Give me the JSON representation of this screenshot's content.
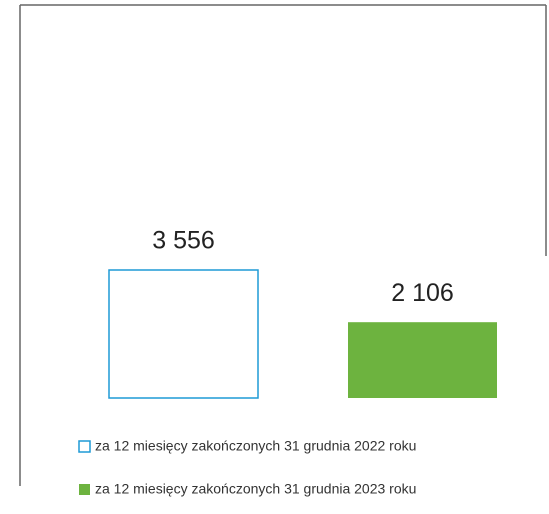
{
  "chart_data": {
    "type": "bar",
    "series": [
      {
        "name": "za 12 miesięcy zakończonych 31 grudnia 2022 roku",
        "color": "#1e9ad6",
        "filled": false,
        "values": [
          3556
        ],
        "value_labels": [
          "3 556"
        ]
      },
      {
        "name": "za 12 miesięcy zakończonych 31 grudnia 2023 roku",
        "color": "#6db33f",
        "filled": true,
        "values": [
          2106
        ],
        "value_labels": [
          "2 106"
        ]
      }
    ]
  }
}
